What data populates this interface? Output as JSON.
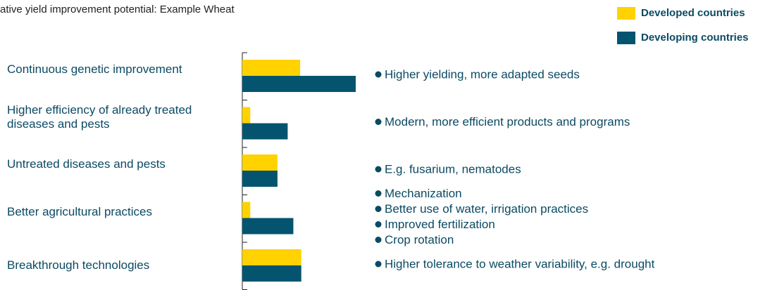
{
  "chart_data": {
    "type": "hbar",
    "title": "ative yield improvement potential: Example Wheat",
    "categories": [
      "Continuous genetic improvement",
      "Higher efficiency of already treated diseases and pests",
      "Untreated diseases and pests",
      "Better agricultural practices",
      "Breakthrough technologies"
    ],
    "series": [
      {
        "name": "Developed countries",
        "color": "#ffd200",
        "values": [
          51,
          7,
          31,
          7,
          52
        ]
      },
      {
        "name": "Developing countries",
        "color": "#045470",
        "values": [
          100,
          40,
          31,
          45,
          52
        ]
      }
    ],
    "notes": [
      [
        "Higher yielding, more adapted seeds"
      ],
      [
        "Modern, more efficient products and programs"
      ],
      [
        "E.g. fusarium, nematodes"
      ],
      [
        "Mechanization",
        "Better use of water, irrigation practices",
        "Improved fertilization",
        "Crop rotation"
      ],
      [
        "Higher tolerance to weather variability, e.g. drought"
      ]
    ],
    "xlim": [
      0,
      100
    ],
    "legend": "top-right"
  }
}
